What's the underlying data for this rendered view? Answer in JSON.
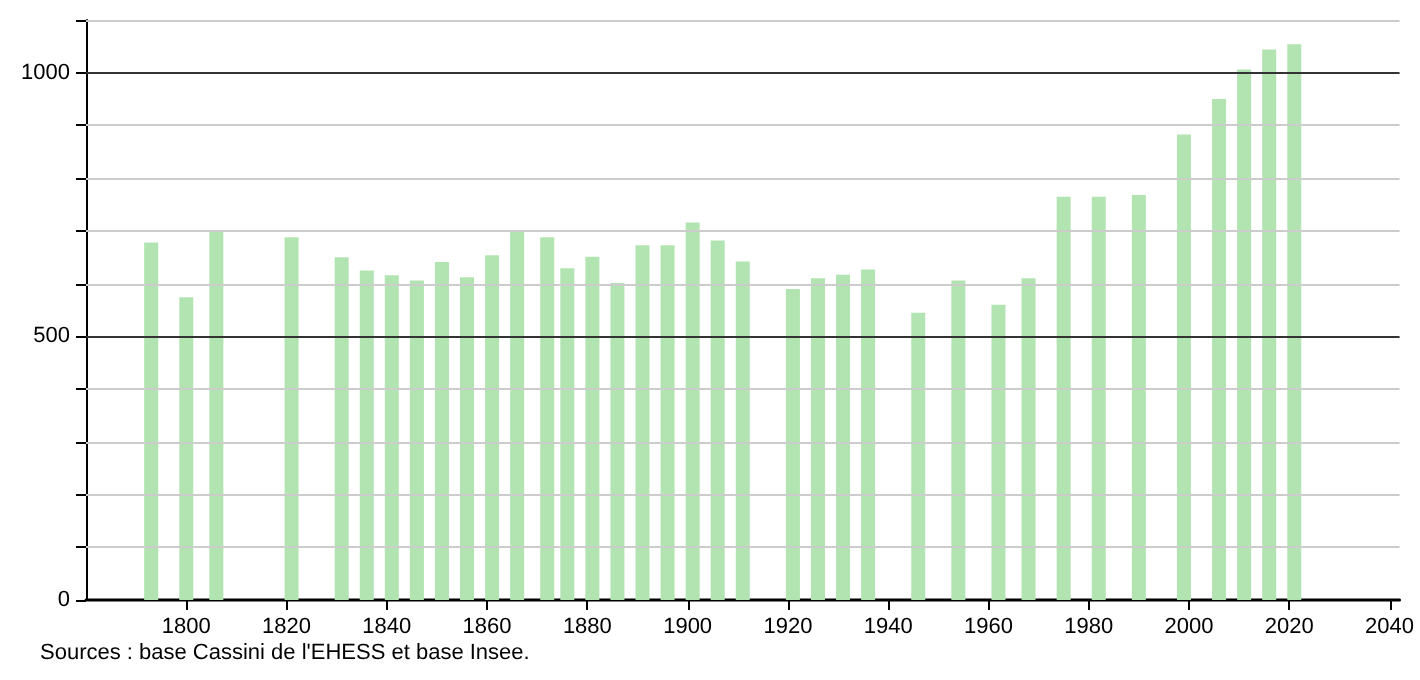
{
  "chart_data": {
    "type": "bar",
    "x": [
      1793,
      1800,
      1806,
      1821,
      1831,
      1836,
      1841,
      1846,
      1851,
      1856,
      1861,
      1866,
      1872,
      1876,
      1881,
      1886,
      1891,
      1896,
      1901,
      1906,
      1911,
      1921,
      1926,
      1931,
      1936,
      1946,
      1954,
      1962,
      1968,
      1975,
      1982,
      1990,
      1999,
      2006,
      2011,
      2016,
      2021
    ],
    "values": [
      678,
      574,
      701,
      688,
      650,
      625,
      616,
      606,
      641,
      612,
      654,
      701,
      688,
      629,
      651,
      601,
      673,
      673,
      716,
      682,
      642,
      590,
      610,
      617,
      627,
      545,
      606,
      560,
      610,
      765,
      765,
      768,
      883,
      950,
      1006,
      1044,
      1054
    ],
    "color": "#b1e4b1",
    "xlim": [
      1780,
      2042
    ],
    "xticks": [
      1800,
      1820,
      1840,
      1860,
      1880,
      1900,
      1920,
      1940,
      1960,
      1980,
      2000,
      2020,
      2040
    ],
    "ylim": [
      0,
      1100
    ],
    "yticks": [
      0,
      {
        "value": 100,
        "label": null
      },
      {
        "value": 200,
        "label": null
      },
      {
        "value": 300,
        "label": null
      },
      {
        "value": 400,
        "label": null
      },
      500,
      {
        "value": 600,
        "label": null
      },
      {
        "value": 700,
        "label": null
      },
      {
        "value": 800,
        "label": null
      },
      {
        "value": 900,
        "label": null
      },
      1000,
      {
        "value": 1100,
        "label": null
      }
    ],
    "grid": "y",
    "annotations": [
      "Sources : base Cassini de l'EHESS et base Insee."
    ]
  }
}
